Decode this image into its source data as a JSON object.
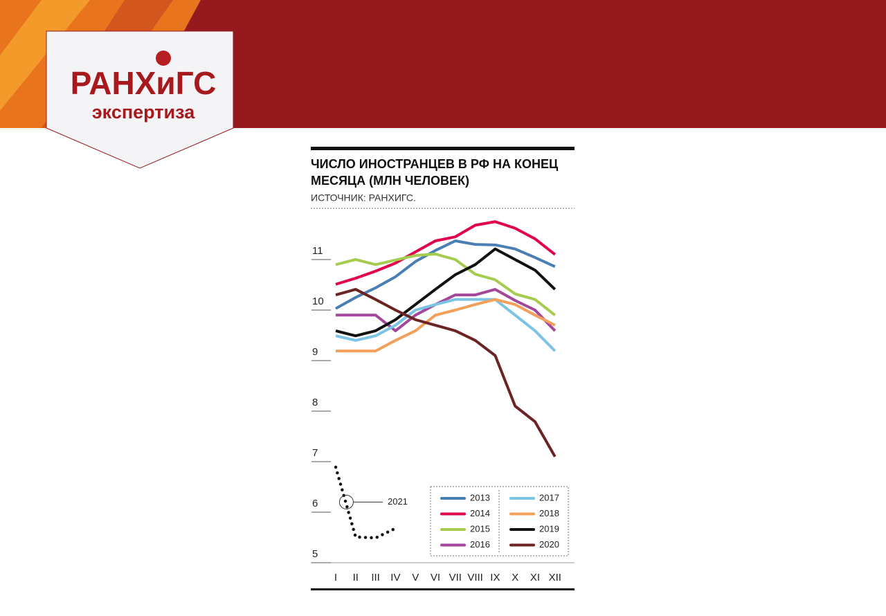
{
  "header": {
    "logo_title": "РАНХиГС",
    "logo_subtitle": "экспертиза"
  },
  "chart_data": {
    "type": "line",
    "title": "ЧИСЛО ИНОСТРАНЦЕВ В РФ НА КОНЕЦ МЕСЯЦА (МЛН ЧЕЛОВЕК)",
    "subtitle": "ИСТОЧНИК: РАНХИГС.",
    "categories": [
      "I",
      "II",
      "III",
      "IV",
      "V",
      "VI",
      "VII",
      "VIII",
      "IX",
      "X",
      "XI",
      "XII"
    ],
    "ylim": [
      5,
      12
    ],
    "yticks": [
      5,
      6,
      7,
      8,
      9,
      10,
      11
    ],
    "series": [
      {
        "name": "2013",
        "color": "#4a7fb5",
        "values": [
          10.03,
          10.25,
          10.44,
          10.66,
          10.96,
          11.18,
          11.37,
          11.3,
          11.29,
          11.21,
          11.04,
          10.86
        ]
      },
      {
        "name": "2014",
        "color": "#e0004d",
        "values": [
          10.51,
          10.63,
          10.77,
          10.93,
          11.15,
          11.37,
          11.45,
          11.68,
          11.75,
          11.62,
          11.41,
          11.1
        ]
      },
      {
        "name": "2015",
        "color": "#a6cc4f",
        "values": [
          10.9,
          11.0,
          10.9,
          10.99,
          11.08,
          11.11,
          11.0,
          10.71,
          10.6,
          10.32,
          10.21,
          9.9
        ]
      },
      {
        "name": "2016",
        "color": "#a2479a",
        "values": [
          9.9,
          9.9,
          9.9,
          9.59,
          9.9,
          10.11,
          10.3,
          10.3,
          10.41,
          10.19,
          10.0,
          9.59
        ]
      },
      {
        "name": "2017",
        "color": "#7cc3e4",
        "values": [
          9.49,
          9.4,
          9.49,
          9.7,
          10.0,
          10.11,
          10.21,
          10.21,
          10.21,
          9.9,
          9.59,
          9.19
        ]
      },
      {
        "name": "2018",
        "color": "#f2a05a",
        "values": [
          9.19,
          9.19,
          9.19,
          9.4,
          9.59,
          9.9,
          10.0,
          10.11,
          10.21,
          10.11,
          9.9,
          9.7
        ]
      },
      {
        "name": "2019",
        "color": "#111111",
        "values": [
          9.59,
          9.49,
          9.59,
          9.81,
          10.11,
          10.41,
          10.7,
          10.9,
          11.21,
          11.0,
          10.79,
          10.41
        ]
      },
      {
        "name": "2020",
        "color": "#6b2323",
        "values": [
          10.3,
          10.41,
          10.21,
          10.0,
          9.81,
          9.7,
          9.59,
          9.4,
          9.1,
          8.1,
          7.79,
          7.1
        ]
      },
      {
        "name": "2021",
        "color": "#111111",
        "dotted": true,
        "values": [
          6.89,
          5.51,
          5.49,
          5.68,
          null,
          null,
          null,
          null,
          null,
          null,
          null,
          null
        ]
      }
    ]
  }
}
